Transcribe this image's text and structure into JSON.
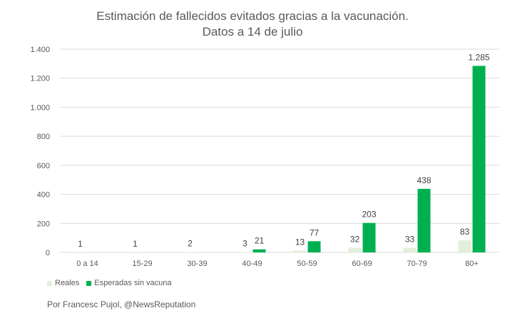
{
  "title_line1": "Estimación de fallecidos evitados gracias a la vacunación.",
  "title_line2": "Datos a 14 de julio",
  "credit": "Por Francesc Pujol, @NewsReputation",
  "colors": {
    "reales": "#e2efda",
    "esperadas": "#00b050",
    "grid": "#d9d9d9",
    "text": "#595959"
  },
  "chart_data": {
    "type": "bar",
    "categories": [
      "0 a 14",
      "15-29",
      "30-39",
      "40-49",
      "50-59",
      "60-69",
      "70-79",
      "80+"
    ],
    "series": [
      {
        "name": "Reales",
        "values": [
          1,
          1,
          2,
          3,
          13,
          32,
          33,
          83
        ],
        "labels": [
          "1",
          "1",
          "2",
          "3",
          "13",
          "32",
          "33",
          "83"
        ]
      },
      {
        "name": "Esperadas sin vacuna",
        "values": [
          null,
          null,
          null,
          21,
          77,
          203,
          438,
          1285
        ],
        "labels": [
          "",
          "",
          "",
          "21",
          "77",
          "203",
          "438",
          "1.285"
        ]
      }
    ],
    "yticks": [
      0,
      200,
      400,
      600,
      800,
      1000,
      1200,
      1400
    ],
    "ytick_labels": [
      "0",
      "200",
      "400",
      "600",
      "800",
      "1.000",
      "1.200",
      "1.400"
    ],
    "ylim": [
      0,
      1400
    ],
    "legend_position": "bottom-left",
    "grid": true
  }
}
